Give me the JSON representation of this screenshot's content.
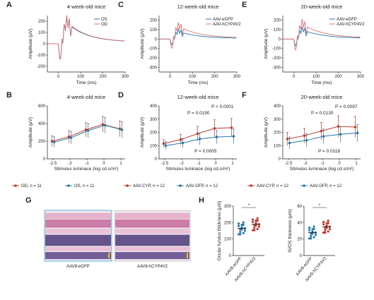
{
  "colors": {
    "red": "#c0392b",
    "blue": "#2878a8",
    "red_trace": "#e07070",
    "blue_trace": "#1f77b4",
    "pink": "#e6007e"
  },
  "row1": {
    "panels": [
      {
        "label": "A",
        "title": "4-week-old mice",
        "legend": [
          "OS",
          "OD"
        ]
      },
      {
        "label": "C",
        "title": "12-week-old mice",
        "legend": [
          "AAV-eGFP",
          "AAV-hCYP4V2"
        ]
      },
      {
        "label": "E",
        "title": "20-week-old mice",
        "legend": [
          "AAV-eGFP",
          "AAV-hCYP4V2"
        ]
      }
    ],
    "ylabel": "Amplitude (μV)",
    "xlabel": "Time (ms)",
    "xticks": [
      "0",
      "100",
      "200",
      "300"
    ],
    "yticks_A": [
      "200",
      "100",
      "0",
      "-100",
      "-200"
    ],
    "yticks_CE": [
      "200",
      "100",
      "0",
      "-100",
      "-200",
      "-300"
    ]
  },
  "chart_data": [
    {
      "panel": "B",
      "type": "line",
      "title": "4-week-old mice",
      "xlabel": "Stimulus luminace (log cd.s/m²)",
      "ylabel": "Amplitude (μV)",
      "x": [
        "-2.5",
        "-2",
        "-1",
        "0",
        "1"
      ],
      "ylim": [
        0,
        600
      ],
      "yticks": [
        "600",
        "400",
        "200",
        "0"
      ],
      "series": [
        {
          "name": "OD, n = 11",
          "values": [
            200,
            250,
            330,
            390,
            340
          ],
          "err": [
            60,
            70,
            80,
            90,
            90
          ]
        },
        {
          "name": "OS, n = 11",
          "values": [
            190,
            240,
            320,
            380,
            330
          ],
          "err": [
            60,
            70,
            80,
            90,
            90
          ]
        }
      ]
    },
    {
      "panel": "D",
      "type": "line",
      "title": "12-week-old mice",
      "xlabel": "Stimulus luminace (log cd.s/m²)",
      "ylabel": "Amplitude (μV)",
      "x": [
        "-2.5",
        "-2",
        "-1",
        "0",
        "1"
      ],
      "ylim": [
        0,
        400
      ],
      "yticks": [
        "400",
        "300",
        "200",
        "100",
        "0"
      ],
      "series": [
        {
          "name": "AAV-CYP, n = 12",
          "values": [
            115,
            145,
            190,
            230,
            235
          ],
          "err": [
            30,
            40,
            55,
            65,
            70
          ]
        },
        {
          "name": "AAV-GFP, n = 12",
          "values": [
            100,
            120,
            150,
            165,
            170
          ],
          "err": [
            30,
            35,
            45,
            50,
            55
          ]
        }
      ],
      "annotations": [
        "P = 0.0190",
        "P < 0.0001",
        "P = 0.0005"
      ]
    },
    {
      "panel": "F",
      "type": "line",
      "title": "20-week-old mice",
      "xlabel": "Stimulus luminace (log cd.s/m²)",
      "ylabel": "Amplitude (μV)",
      "x": [
        "-2.5",
        "-2",
        "-1",
        "0",
        "1"
      ],
      "ylim": [
        0,
        400
      ],
      "yticks": [
        "400",
        "300",
        "200",
        "100",
        "0"
      ],
      "series": [
        {
          "name": "AAV-CYP, n = 12",
          "values": [
            150,
            175,
            210,
            245,
            240
          ],
          "err": [
            50,
            55,
            65,
            80,
            80
          ]
        },
        {
          "name": "AAV-GFP, n = 12",
          "values": [
            120,
            140,
            170,
            185,
            195
          ],
          "err": [
            45,
            50,
            55,
            60,
            65
          ]
        }
      ],
      "annotations": [
        "P = 0.0130",
        "P = 0.0097",
        "P = 0.0118"
      ]
    },
    {
      "panel": "H1",
      "type": "scatter",
      "ylabel": "Ocular fundus thickness (μm)",
      "ylim": [
        0,
        300
      ],
      "yticks": [
        "300",
        "200",
        "100",
        "0"
      ],
      "categories": [
        "AAV8-eGFP",
        "AAV8-hCYP4V2"
      ],
      "means": [
        165,
        190
      ],
      "sig": "*"
    },
    {
      "panel": "H2",
      "type": "scatter",
      "ylabel": "IS/OS thickness (μm)",
      "ylim": [
        0,
        60
      ],
      "yticks": [
        "60",
        "40",
        "20",
        "0"
      ],
      "categories": [
        "AAV8-eGFP",
        "AAV8-hCYP4V2"
      ],
      "means": [
        28,
        35
      ],
      "sig": "*"
    }
  ],
  "panelG": {
    "label": "G",
    "captions": [
      "AAV8-eGFP",
      "AAV8-hCYP4V2"
    ]
  },
  "panelH": {
    "label": "H"
  }
}
